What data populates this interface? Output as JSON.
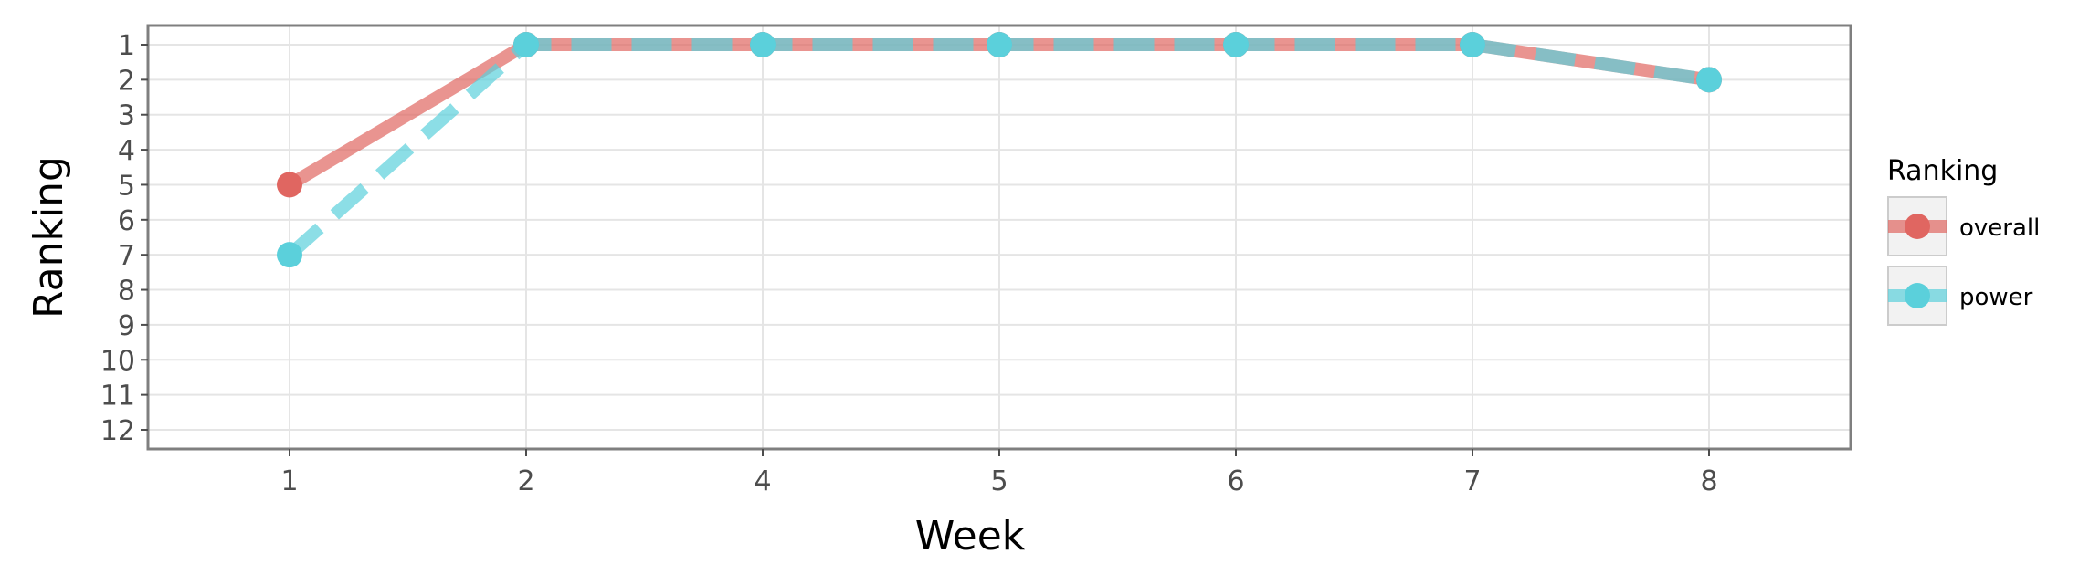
{
  "chart_data": {
    "type": "line",
    "xlabel": "Week",
    "ylabel": "Ranking",
    "categories": [
      "1",
      "2",
      "4",
      "5",
      "6",
      "7",
      "8"
    ],
    "y_ticks": [
      "1",
      "2",
      "3",
      "4",
      "5",
      "6",
      "7",
      "8",
      "9",
      "10",
      "11",
      "12"
    ],
    "ylim": [
      12,
      1
    ],
    "y_reversed": true,
    "grid": true,
    "legend": {
      "title": "Ranking",
      "placement": "right"
    },
    "series": [
      {
        "name": "overall",
        "color": "#e06661",
        "line_style": "solid",
        "values": [
          5,
          1,
          1,
          1,
          1,
          1,
          2
        ]
      },
      {
        "name": "power",
        "color": "#5bd0db",
        "line_style": "dashed",
        "values": [
          7,
          1,
          1,
          1,
          1,
          1,
          2
        ]
      }
    ]
  }
}
